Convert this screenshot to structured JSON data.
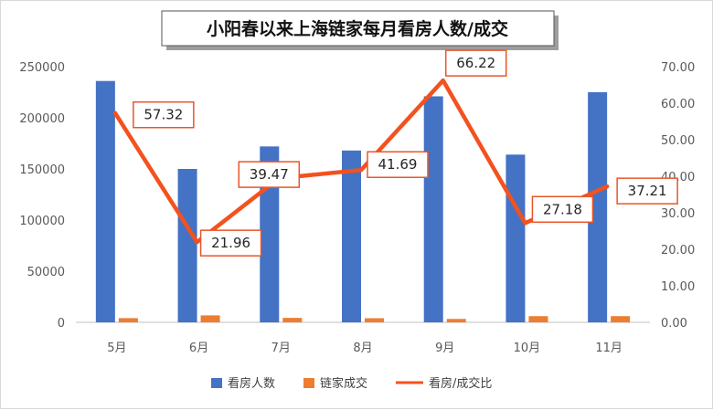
{
  "chart_data": {
    "type": "bar",
    "title": "小阳春以来上海链家每月看房人数/成交",
    "categories": [
      "5月",
      "6月",
      "7月",
      "8月",
      "9月",
      "10月",
      "11月"
    ],
    "series": [
      {
        "name": "看房人数",
        "kind": "bar",
        "axis": "left",
        "color": "#4472C4",
        "values": [
          236000,
          150000,
          172000,
          168000,
          221000,
          164000,
          225000
        ]
      },
      {
        "name": "链家成交",
        "kind": "bar",
        "axis": "left",
        "color": "#ED7D31",
        "values": [
          4100,
          6800,
          4350,
          4030,
          3330,
          6040,
          6050
        ]
      },
      {
        "name": "看房/成交比",
        "kind": "line",
        "axis": "right",
        "color": "#F4511E",
        "values": [
          57.32,
          21.96,
          39.47,
          41.69,
          66.22,
          27.18,
          37.21
        ],
        "data_labels": [
          "57.32",
          "21.96",
          "39.47",
          "41.69",
          "66.22",
          "27.18",
          "37.21"
        ]
      }
    ],
    "y_left": {
      "ylim": [
        0,
        250000
      ],
      "ticks": [
        "0",
        "50000",
        "100000",
        "150000",
        "200000",
        "250000"
      ]
    },
    "y_right": {
      "ylim": [
        0,
        70
      ],
      "ticks": [
        "0.00",
        "10.00",
        "20.00",
        "30.00",
        "40.00",
        "50.00",
        "60.00",
        "70.00"
      ]
    },
    "xlabel": "",
    "ylabel": "",
    "grid": false,
    "legend": "bottom"
  }
}
